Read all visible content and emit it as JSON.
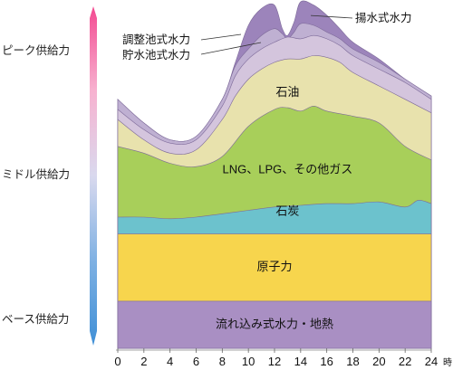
{
  "chart_data": {
    "type": "area",
    "title": "",
    "xlabel": "",
    "ylabel": "",
    "x_unit": "時",
    "x": [
      0,
      2,
      4,
      6,
      8,
      10,
      12,
      14,
      16,
      18,
      20,
      22,
      24
    ],
    "x_tick_labels": [
      "0",
      "2",
      "4",
      "6",
      "8",
      "10",
      "12",
      "14",
      "16",
      "18",
      "20",
      "22",
      "24"
    ],
    "xlim": [
      0,
      24
    ],
    "ylim": [
      0,
      100
    ],
    "stack_order": "bottom-to-top",
    "series": [
      {
        "name": "流れ込み式水力・地熱",
        "color": "#a98fc3",
        "x": [
          0,
          24
        ],
        "top": [
          14,
          14
        ]
      },
      {
        "name": "原子力",
        "color": "#f7d54d",
        "x": [
          0,
          24
        ],
        "top": [
          34,
          34
        ]
      },
      {
        "name": "石炭",
        "color": "#6cc2cd",
        "x": [
          0,
          2,
          4,
          6,
          8,
          10,
          12,
          14,
          16,
          18,
          20,
          22,
          23,
          24
        ],
        "top": [
          39,
          39,
          38.5,
          39,
          40,
          41,
          42,
          42.5,
          43,
          43,
          43.5,
          42,
          44,
          43
        ]
      },
      {
        "name": "LNG、LPG、その他ガス",
        "color": "#a8cf5a",
        "x": [
          0,
          2,
          4,
          6,
          8,
          10,
          12,
          13,
          14,
          15,
          16,
          18,
          20,
          22,
          24
        ],
        "top": [
          60,
          58,
          55,
          54,
          57,
          66,
          71,
          71.5,
          70.5,
          72,
          70.5,
          69,
          67,
          60,
          56
        ]
      },
      {
        "name": "石油",
        "color": "#e8e2ad",
        "x": [
          0,
          2,
          4,
          6,
          8,
          9,
          10,
          11,
          12,
          13,
          14,
          15,
          16,
          17,
          18,
          20,
          22,
          24
        ],
        "top": [
          68,
          62,
          58,
          59,
          68,
          75,
          80,
          83,
          85,
          86,
          86,
          87,
          86.5,
          85,
          82,
          78,
          74,
          70
        ]
      },
      {
        "name": "貯水池式水力",
        "color": "#d4c5dd",
        "x": [
          0,
          2,
          4,
          6,
          8,
          9,
          10,
          11,
          12,
          13,
          14,
          15,
          16,
          17,
          18,
          20,
          22,
          24
        ],
        "top": [
          71,
          65,
          61,
          62,
          72,
          81,
          86,
          89,
          91,
          92.5,
          92,
          93,
          92,
          90,
          87,
          83,
          79,
          74
        ]
      },
      {
        "name": "調整池式水力",
        "color": "#bfb0d2",
        "x": [
          0,
          2,
          4,
          6,
          8,
          9,
          10,
          11,
          12,
          12.6,
          13,
          13.5,
          14,
          15,
          16,
          17,
          18,
          20,
          22,
          24
        ],
        "top": [
          74,
          67,
          62,
          63,
          74,
          84,
          89,
          93,
          95,
          93.5,
          92,
          94,
          96.5,
          96,
          94,
          92,
          89,
          85,
          80,
          75
        ]
      },
      {
        "name": "揚水式水力",
        "color": "#9c84bb",
        "x": [
          0,
          2,
          4,
          6,
          8,
          9,
          10,
          11,
          12,
          12.6,
          13,
          13.5,
          14,
          15,
          16,
          17,
          18,
          20,
          22,
          24
        ],
        "top": [
          74,
          67,
          62,
          63,
          74,
          85,
          96,
          101,
          102,
          95,
          93,
          97,
          103,
          102,
          99,
          95,
          91,
          86,
          80,
          75
        ]
      }
    ],
    "layer_labels": [
      {
        "text": "流れ込み式水力・地熱",
        "x": 12,
        "y": 7
      },
      {
        "text": "原子力",
        "x": 12,
        "y": 24
      },
      {
        "text": "石炭",
        "x": 13,
        "y": 40.6
      },
      {
        "text": "LNG、LPG、その他ガス",
        "x": 13,
        "y": 53
      },
      {
        "text": "石油",
        "x": 13,
        "y": 76
      }
    ],
    "callout_labels": [
      {
        "text": "揚水式水力",
        "anchor_x": 14.5,
        "anchor_y": 100
      },
      {
        "text": "調整池式水力",
        "anchor_x": 11,
        "anchor_y": 95
      },
      {
        "text": "貯水池式水力",
        "anchor_x": 11,
        "anchor_y": 92
      }
    ],
    "vertical_scale": {
      "labels": [
        "ピーク供給力",
        "ミドル供給力",
        "ベース供給力"
      ],
      "gradient": [
        "#f34a91",
        "#f7b2d0",
        "#d9d9ee",
        "#7fb1e3",
        "#3f8fd6"
      ]
    }
  }
}
